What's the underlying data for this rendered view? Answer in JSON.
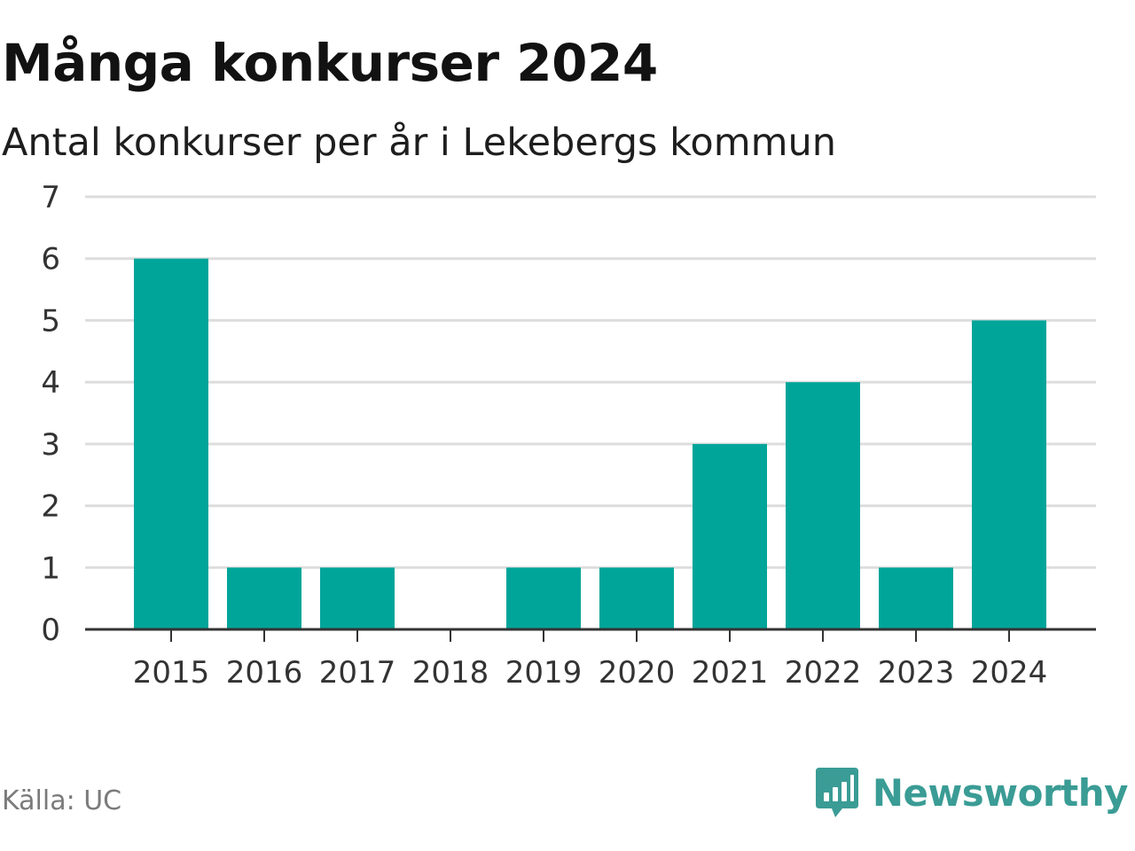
{
  "header": {
    "title": "Många konkurser 2024",
    "subtitle": "Antal konkurser per år i Lekebergs kommun"
  },
  "footer": {
    "source": "Källa: UC",
    "brand": "Newsworthy",
    "brand_icon": "bar-chart-speech-bubble-icon"
  },
  "colors": {
    "bar": "#00a59a",
    "grid": "#dddddd",
    "axis": "#333333",
    "brand": "#3a9c95"
  },
  "chart_data": {
    "type": "bar",
    "title": "Många konkurser 2024",
    "subtitle": "Antal konkurser per år i Lekebergs kommun",
    "categories": [
      "2015",
      "2016",
      "2017",
      "2018",
      "2019",
      "2020",
      "2021",
      "2022",
      "2023",
      "2024"
    ],
    "values": [
      6,
      1,
      1,
      0,
      1,
      1,
      3,
      4,
      1,
      5
    ],
    "ylim": [
      0,
      7
    ],
    "yticks": [
      0,
      1,
      2,
      3,
      4,
      5,
      6,
      7
    ],
    "grid": true,
    "legend": "none"
  }
}
